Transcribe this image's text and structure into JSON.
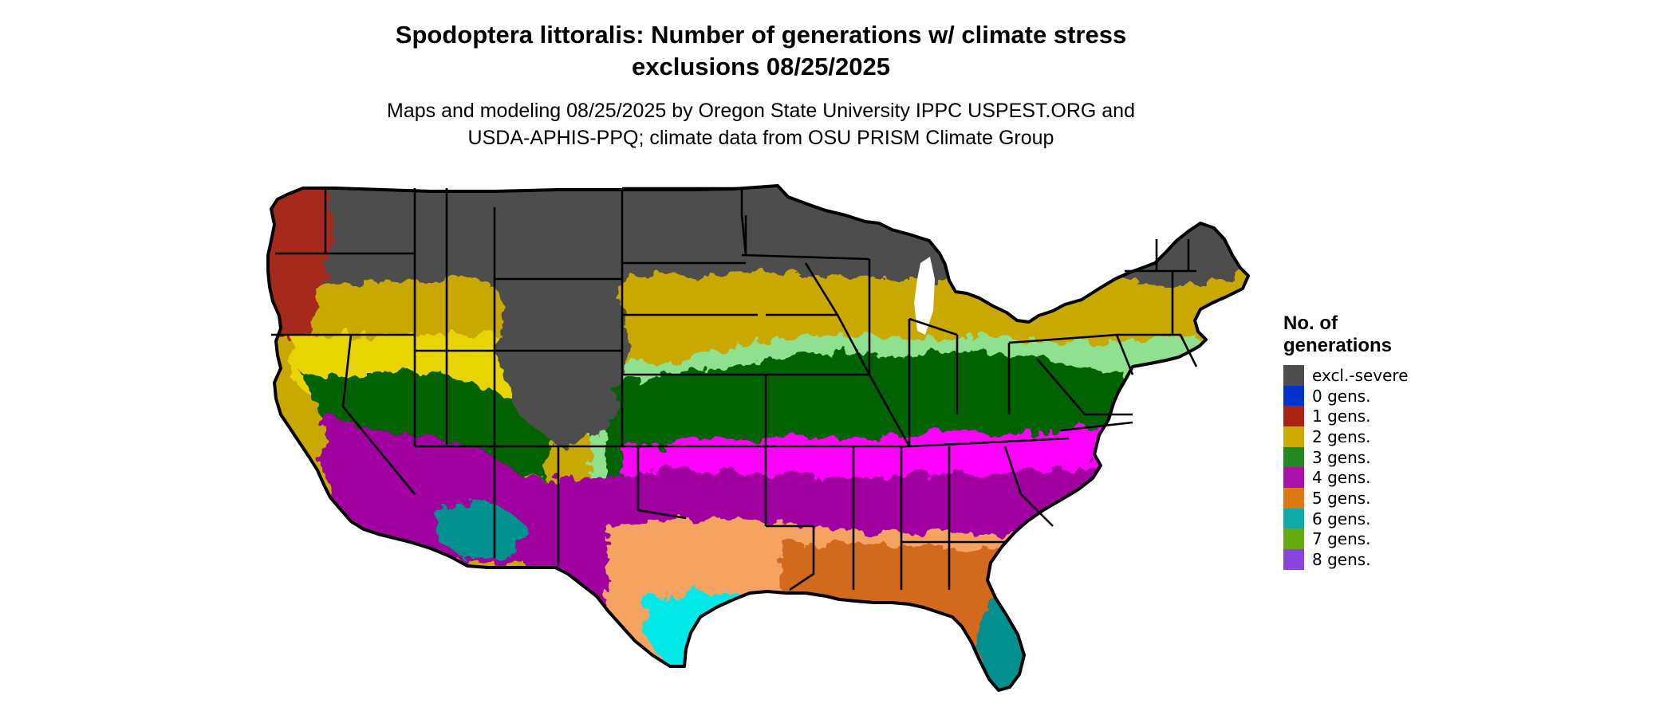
{
  "title": {
    "line1": "Spodoptera littoralis: Number of generations w/ climate stress",
    "line2": "exclusions 08/25/2025"
  },
  "subtitle": {
    "line1": "Maps and modeling 08/25/2025 by Oregon State University IPPC USPEST.ORG and",
    "line2": "USDA-APHIS-PPQ; climate data from OSU PRISM Climate Group"
  },
  "map": {
    "region": "Contiguous United States",
    "boundary_color": "#000000",
    "colors": {
      "excl": "#4d4d4d",
      "g1": "#a52a1a",
      "g2": "#c9a800",
      "g2b": "#e8d400",
      "g3": "#006400",
      "g3b": "#8fe08f",
      "g4": "#a000a0",
      "g4b": "#ff00ff",
      "g5": "#d2691e",
      "g5b": "#f4a460",
      "g6": "#009090",
      "g6b": "#00e8e8",
      "g7": "#7cc000"
    }
  },
  "legend": {
    "title_line1": "No. of",
    "title_line2": "generations",
    "items": [
      {
        "label": "excl.-severe",
        "color": "#4d4d4d"
      },
      {
        "label": "0 gens.",
        "color": "#0033cc"
      },
      {
        "label": "1 gens.",
        "color": "#aa2211"
      },
      {
        "label": "2 gens.",
        "color": "#ccaa00"
      },
      {
        "label": "3 gens.",
        "color": "#228822"
      },
      {
        "label": "4 gens.",
        "color": "#aa11aa"
      },
      {
        "label": "5 gens.",
        "color": "#dd7711"
      },
      {
        "label": "6 gens.",
        "color": "#11aaaa"
      },
      {
        "label": "7 gens.",
        "color": "#66aa11"
      },
      {
        "label": "8 gens.",
        "color": "#8844dd"
      }
    ]
  }
}
